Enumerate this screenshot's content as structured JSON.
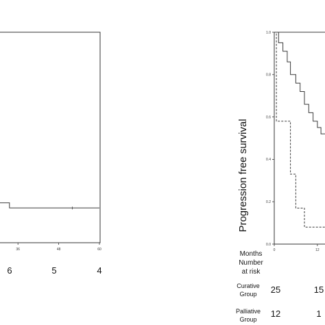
{
  "chart_data": [
    {
      "type": "line",
      "title": "",
      "xlabel": "",
      "ylabel": "",
      "x_ticks": [
        "36",
        "48",
        "60"
      ],
      "xlim": [
        0,
        60
      ],
      "ylim": [
        0,
        1
      ],
      "series": [
        {
          "name": "",
          "style": "solid",
          "x": [
            0,
            33.5,
            33.5,
            60
          ],
          "y": [
            0.19,
            0.19,
            0.165,
            0.165
          ],
          "censors": [
            {
              "x": 27,
              "y": 0.19
            },
            {
              "x": 52,
              "y": 0.165
            }
          ]
        }
      ],
      "risk_table": {
        "values": [
          "6",
          "5",
          "4"
        ]
      }
    },
    {
      "type": "line",
      "title": "",
      "xlabel": "",
      "ylabel": "Progression free survival",
      "y_ticks": [
        "1.0",
        "0.8",
        "0.6",
        "0.4",
        "0.2",
        "0.0"
      ],
      "x_ticks": [
        "0",
        "12"
      ],
      "xlim": [
        0,
        14.5
      ],
      "ylim": [
        0,
        1
      ],
      "series": [
        {
          "name": "",
          "style": "solid",
          "x": [
            0,
            14.5
          ],
          "y": [
            1.0,
            1.0
          ]
        },
        {
          "name": "",
          "style": "solid",
          "x": [
            0,
            1.2,
            1.2,
            2.4,
            2.4,
            3.6,
            3.6,
            4.5,
            4.5,
            6,
            6,
            7.2,
            7.2,
            8.4,
            8.4,
            9.6,
            9.6,
            10.8,
            10.8,
            12,
            12,
            13,
            13,
            14.5
          ],
          "y": [
            1.0,
            1.0,
            0.95,
            0.95,
            0.91,
            0.91,
            0.86,
            0.86,
            0.8,
            0.8,
            0.76,
            0.76,
            0.72,
            0.72,
            0.66,
            0.66,
            0.62,
            0.62,
            0.58,
            0.58,
            0.55,
            0.55,
            0.52,
            0.52
          ]
        },
        {
          "name": "",
          "style": "dashed",
          "x": [
            0,
            0.6,
            0.6,
            2.8,
            2.8,
            4.5,
            4.5,
            6,
            6,
            8.4,
            8.4,
            14.5
          ],
          "y": [
            1.0,
            1.0,
            0.58,
            0.58,
            0.58,
            0.58,
            0.33,
            0.33,
            0.17,
            0.17,
            0.08,
            0.08
          ]
        }
      ],
      "risk_table": {
        "header_months": "Months",
        "header_number": "Number",
        "header_at_risk": "at risk",
        "groups": [
          {
            "label_line1": "Curative",
            "label_line2": "Group",
            "values": [
              "25",
              "15"
            ]
          },
          {
            "label_line1": "Palliative",
            "label_line2": "Group",
            "values": [
              "12",
              "1"
            ]
          }
        ]
      }
    }
  ],
  "colors": {
    "line": "#3a3a3a",
    "axis": "#333333"
  }
}
